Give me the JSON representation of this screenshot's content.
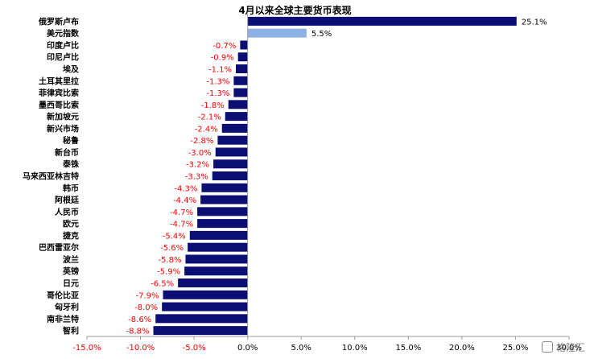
{
  "chart_data": {
    "type": "bar",
    "orientation": "horizontal",
    "title": "4月以来全球主要货币表现",
    "xlabel": "",
    "ylabel": "",
    "xlim": [
      -15,
      30
    ],
    "tick_values": [
      -15,
      -10,
      -5,
      0,
      5,
      10,
      15,
      20,
      25,
      30
    ],
    "tick_labels": [
      "-15.0%",
      "-10.0%",
      "-5.0%",
      "0.0%",
      "5.0%",
      "10.0%",
      "15.0%",
      "20.0%",
      "25.0%",
      "30.0%"
    ],
    "categories": [
      "俄罗斯卢布",
      "美元指数",
      "印度卢比",
      "印尼卢比",
      "埃及",
      "土耳其里拉",
      "菲律宾比索",
      "墨西哥比索",
      "新加坡元",
      "新兴市场",
      "秘鲁",
      "新台币",
      "泰铢",
      "马来西亚林吉特",
      "韩币",
      "阿根廷",
      "人民币",
      "欧元",
      "捷克",
      "巴西雷亚尔",
      "波兰",
      "英镑",
      "日元",
      "哥伦比亚",
      "匈牙利",
      "南非兰特",
      "智利"
    ],
    "values": [
      25.1,
      5.5,
      -0.7,
      -0.9,
      -1.1,
      -1.3,
      -1.3,
      -1.8,
      -2.1,
      -2.4,
      -2.8,
      -3.0,
      -3.2,
      -3.3,
      -4.3,
      -4.4,
      -4.7,
      -4.7,
      -5.4,
      -5.6,
      -5.8,
      -5.9,
      -6.5,
      -7.9,
      -8.0,
      -8.6,
      -8.8
    ],
    "data_labels": [
      "25.1%",
      "5.5%",
      "-0.7%",
      "-0.9%",
      "-1.1%",
      "-1.3%",
      "-1.3%",
      "-1.8%",
      "-2.1%",
      "-2.4%",
      "-2.8%",
      "-3.0%",
      "-3.2%",
      "-3.3%",
      "-4.3%",
      "-4.4%",
      "-4.7%",
      "-4.7%",
      "-5.4%",
      "-5.6%",
      "-5.8%",
      "-5.9%",
      "-6.5%",
      "-7.9%",
      "-8.0%",
      "-8.6%",
      "-8.8%"
    ],
    "highlight_category": "美元指数",
    "grid": false,
    "legend": "none"
  },
  "colors": {
    "bar": "#0b0f74",
    "highlight_bar": "#8fb2e4",
    "negative_label": "#ff0000",
    "positive_label": "#000000",
    "tick_label": "#ff0000",
    "axis": "#9a9a9a"
  },
  "watermark": {
    "text": "格隆汇",
    "icon": "brand-logo-icon"
  }
}
